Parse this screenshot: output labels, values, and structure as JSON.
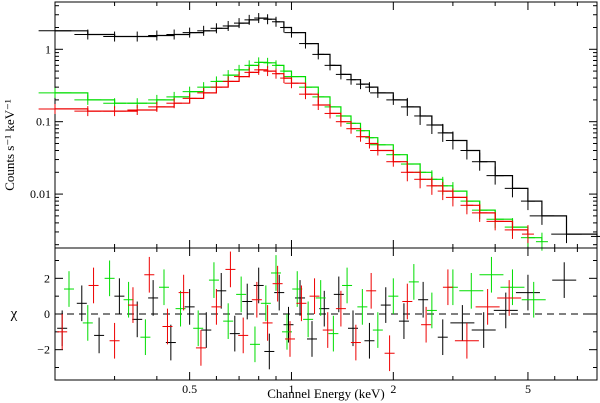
{
  "chart_data": [
    {
      "panel": "spectrum",
      "type": "line",
      "title": "",
      "ylabel": "Counts s⁻¹ keV⁻¹",
      "xlabel": "",
      "xscale": "log",
      "yscale": "log",
      "xlim": [
        0.2,
        8.0
      ],
      "ylim": [
        0.0018,
        4.5
      ],
      "xticks": [
        0.5,
        1,
        2,
        5
      ],
      "yticks": [
        0.01,
        0.1,
        1
      ],
      "ytick_labels": [
        "0.01",
        "0.1",
        "1"
      ],
      "series": [
        {
          "name": "black",
          "color": "#000000",
          "x": [
            0.2,
            0.25,
            0.3,
            0.35,
            0.4,
            0.45,
            0.5,
            0.55,
            0.6,
            0.65,
            0.7,
            0.75,
            0.8,
            0.85,
            0.9,
            0.95,
            1.0,
            1.1,
            1.2,
            1.3,
            1.4,
            1.5,
            1.6,
            1.7,
            1.8,
            2.0,
            2.2,
            2.4,
            2.6,
            2.8,
            3.0,
            3.3,
            3.6,
            4.0,
            4.5,
            5.0,
            5.5,
            6.5,
            8.0
          ],
          "values": [
            1.8,
            1.6,
            1.5,
            1.5,
            1.55,
            1.6,
            1.7,
            1.8,
            1.95,
            2.1,
            2.3,
            2.55,
            2.7,
            2.6,
            2.4,
            2.0,
            1.7,
            1.2,
            0.85,
            0.6,
            0.45,
            0.38,
            0.33,
            0.3,
            0.25,
            0.2,
            0.16,
            0.12,
            0.09,
            0.07,
            0.055,
            0.04,
            0.028,
            0.018,
            0.012,
            0.008,
            0.005,
            0.0028,
            0.0026
          ]
        },
        {
          "name": "green",
          "color": "#00dd00",
          "x": [
            0.2,
            0.25,
            0.3,
            0.35,
            0.4,
            0.45,
            0.5,
            0.55,
            0.6,
            0.65,
            0.7,
            0.75,
            0.8,
            0.85,
            0.9,
            0.95,
            1.0,
            1.1,
            1.2,
            1.3,
            1.4,
            1.5,
            1.6,
            1.7,
            1.8,
            2.0,
            2.2,
            2.4,
            2.6,
            2.8,
            3.0,
            3.3,
            3.6,
            4.0,
            4.5,
            5.0,
            5.5
          ],
          "values": [
            0.25,
            0.2,
            0.18,
            0.18,
            0.2,
            0.22,
            0.26,
            0.3,
            0.36,
            0.44,
            0.52,
            0.6,
            0.66,
            0.65,
            0.6,
            0.5,
            0.42,
            0.3,
            0.22,
            0.16,
            0.12,
            0.095,
            0.075,
            0.06,
            0.048,
            0.035,
            0.026,
            0.02,
            0.016,
            0.013,
            0.011,
            0.008,
            0.006,
            0.0045,
            0.0035,
            0.0025,
            0.0022
          ]
        },
        {
          "name": "red",
          "color": "#ee0000",
          "x": [
            0.2,
            0.25,
            0.3,
            0.35,
            0.4,
            0.45,
            0.5,
            0.55,
            0.6,
            0.65,
            0.7,
            0.75,
            0.8,
            0.85,
            0.9,
            0.95,
            1.0,
            1.1,
            1.2,
            1.3,
            1.4,
            1.5,
            1.6,
            1.7,
            1.8,
            2.0,
            2.2,
            2.4,
            2.6,
            2.8,
            3.0,
            3.3,
            3.6,
            4.0,
            4.5,
            5.0
          ],
          "values": [
            0.15,
            0.14,
            0.14,
            0.145,
            0.16,
            0.18,
            0.21,
            0.25,
            0.3,
            0.36,
            0.42,
            0.48,
            0.52,
            0.5,
            0.46,
            0.4,
            0.34,
            0.24,
            0.17,
            0.13,
            0.1,
            0.08,
            0.062,
            0.05,
            0.04,
            0.028,
            0.02,
            0.016,
            0.013,
            0.011,
            0.009,
            0.007,
            0.0055,
            0.0042,
            0.0032,
            0.0028
          ]
        }
      ]
    },
    {
      "panel": "residuals",
      "type": "scatter",
      "title": "",
      "ylabel": "χ",
      "xlabel": "Channel Energy (keV)",
      "xscale": "log",
      "xlim": [
        0.2,
        8.0
      ],
      "ylim": [
        -3.7,
        3.7
      ],
      "xticks": [
        0.5,
        1,
        2,
        5
      ],
      "xtick_labels": [
        "0.5",
        "1",
        "2",
        "5"
      ],
      "yticks": [
        -2,
        0,
        2
      ],
      "ytick_labels": [
        "−2",
        "0",
        "2"
      ],
      "reference_line": 0,
      "series": [
        {
          "name": "black",
          "color": "#000000",
          "x": [
            0.21,
            0.24,
            0.27,
            0.31,
            0.35,
            0.39,
            0.44,
            0.5,
            0.56,
            0.62,
            0.68,
            0.74,
            0.8,
            0.86,
            0.92,
            0.98,
            1.06,
            1.15,
            1.25,
            1.38,
            1.52,
            1.7,
            1.9,
            2.15,
            2.45,
            2.8,
            3.2,
            3.7,
            4.3,
            5.0,
            6.4
          ],
          "values": [
            -0.8,
            0.6,
            -1.2,
            1.0,
            -0.3,
            0.9,
            -1.6,
            0.4,
            -0.9,
            1.3,
            -1.1,
            0.7,
            1.6,
            -2.1,
            1.2,
            -0.6,
            0.9,
            -1.4,
            0.3,
            1.1,
            -0.8,
            -1.5,
            0.5,
            -0.4,
            0.8,
            -1.3,
            -0.5,
            -0.9,
            0.2,
            1.2,
            1.9
          ]
        },
        {
          "name": "green",
          "color": "#00dd00",
          "x": [
            0.22,
            0.25,
            0.29,
            0.33,
            0.37,
            0.42,
            0.47,
            0.53,
            0.59,
            0.65,
            0.71,
            0.78,
            0.84,
            0.9,
            0.97,
            1.04,
            1.12,
            1.22,
            1.33,
            1.46,
            1.62,
            1.8,
            2.0,
            2.3,
            2.6,
            3.0,
            3.4,
            3.9,
            4.5,
            5.2
          ],
          "values": [
            1.4,
            -0.5,
            2.0,
            0.8,
            -1.3,
            1.5,
            0.3,
            -0.8,
            1.9,
            -0.4,
            1.1,
            -1.7,
            0.6,
            2.3,
            -1.0,
            1.4,
            -0.3,
            0.9,
            -1.1,
            1.6,
            0.4,
            -0.9,
            1.0,
            1.8,
            0.2,
            1.5,
            1.3,
            2.2,
            1.5,
            0.8
          ]
        },
        {
          "name": "red",
          "color": "#ee0000",
          "x": [
            0.21,
            0.26,
            0.3,
            0.34,
            0.38,
            0.43,
            0.48,
            0.54,
            0.6,
            0.66,
            0.72,
            0.79,
            0.85,
            0.91,
            0.99,
            1.07,
            1.17,
            1.28,
            1.4,
            1.55,
            1.72,
            1.95,
            2.2,
            2.5,
            2.9,
            3.3,
            3.8,
            4.4
          ],
          "values": [
            -1.0,
            1.6,
            -1.5,
            0.5,
            2.2,
            -0.7,
            1.2,
            -1.9,
            0.4,
            2.5,
            -1.2,
            0.8,
            -0.5,
            1.7,
            -1.4,
            0.6,
            1.0,
            -0.9,
            0.3,
            -1.6,
            1.3,
            -2.2,
            0.7,
            -0.6,
            1.5,
            -1.5,
            0.4,
            0.9
          ]
        }
      ]
    }
  ]
}
